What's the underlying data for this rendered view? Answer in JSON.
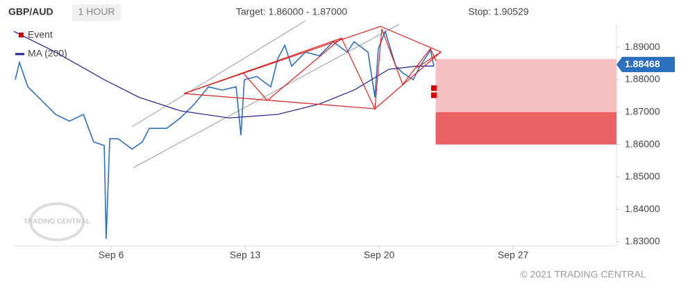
{
  "chart_data": {
    "type": "line",
    "title": "GBP/AUD",
    "timeframe": "1 HOUR",
    "target_label": "Target: 1.86000 - 1.87000",
    "stop_label": "Stop: 1.90529",
    "watermark": "TRADING CENTRAL",
    "footer": "© 2021 TRADING CENTRAL",
    "xlim": [
      0.92,
      32.4
    ],
    "ylim": [
      1.8287,
      1.8971
    ],
    "xticks": [
      {
        "value": 6,
        "label": "Sep 6"
      },
      {
        "value": 13,
        "label": "Sep 13"
      },
      {
        "value": 20,
        "label": "Sep 20"
      },
      {
        "value": 27,
        "label": "Sep 27"
      }
    ],
    "yticks": [
      {
        "value": 1.83,
        "label": "1.83000"
      },
      {
        "value": 1.84,
        "label": "1.84000"
      },
      {
        "value": 1.85,
        "label": "1.85000"
      },
      {
        "value": 1.86,
        "label": "1.86000"
      },
      {
        "value": 1.87,
        "label": "1.87000"
      },
      {
        "value": 1.88,
        "label": "1.88000"
      },
      {
        "value": 1.89,
        "label": "1.89000"
      }
    ],
    "price": {
      "color": "#2b6fbd",
      "x": [
        0.99,
        1.21,
        1.65,
        2.37,
        3.1,
        3.82,
        4.55,
        5.09,
        5.64,
        5.74,
        5.93,
        6.36,
        7.09,
        7.63,
        7.99,
        8.9,
        9.62,
        10.35,
        11.08,
        11.8,
        12.53,
        12.78,
        12.96,
        13.61,
        14.34,
        14.7,
        15.07,
        15.43,
        16.15,
        16.88,
        17.6,
        18.33,
        18.69,
        19.42,
        19.78,
        19.96,
        20.32,
        20.87,
        21.23,
        21.78,
        22.14,
        22.68,
        22.86
      ],
      "values": [
        1.88,
        1.8853,
        1.8778,
        1.8736,
        1.8693,
        1.8672,
        1.8693,
        1.8608,
        1.8597,
        1.8309,
        1.8618,
        1.8618,
        1.8586,
        1.8608,
        1.865,
        1.865,
        1.8682,
        1.8725,
        1.8778,
        1.8768,
        1.8778,
        1.8629,
        1.88,
        1.881,
        1.8778,
        1.8864,
        1.8906,
        1.8842,
        1.8885,
        1.8874,
        1.8917,
        1.8885,
        1.8917,
        1.8885,
        1.8746,
        1.8896,
        1.8949,
        1.8842,
        1.8821,
        1.88,
        1.8842,
        1.8891,
        1.8842
      ]
    },
    "series": [
      {
        "name": "MA (200)",
        "color": "#1c1c8a",
        "x": [
          0.92,
          3.1,
          5.64,
          7.45,
          9.62,
          12.16,
          14.7,
          16.88,
          18.69,
          20.51,
          21.96,
          22.86
        ],
        "values": [
          1.8949,
          1.8885,
          1.88,
          1.8746,
          1.8704,
          1.8682,
          1.8693,
          1.8725,
          1.8768,
          1.8832,
          1.8842,
          1.8842
        ]
      }
    ],
    "events": {
      "name": "Event",
      "color": "#e00000",
      "x": [
        22.86,
        22.86
      ],
      "values": [
        1.8774,
        1.8752
      ]
    },
    "zones": [
      {
        "color": "#f7c1c1",
        "x0": 22.95,
        "lo": 1.87,
        "hi": 1.8864
      },
      {
        "color": "#ec6262",
        "x0": 22.95,
        "lo": 1.86,
        "hi": 1.87
      }
    ],
    "last_price": 1.88468,
    "last_price_color": "#2b6fbd"
  }
}
